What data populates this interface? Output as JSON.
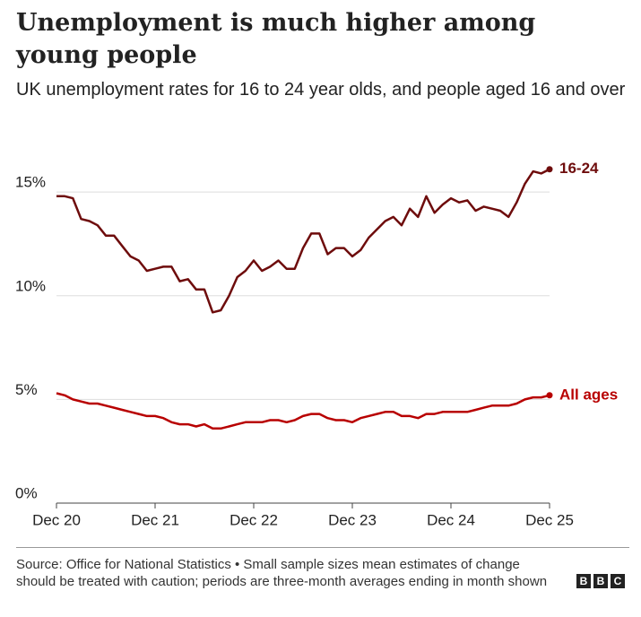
{
  "header": {
    "title": "Unemployment is much higher among young people",
    "subtitle": "UK unemployment rates for 16 to 24 year olds, and people aged 16 and over"
  },
  "chart_data": {
    "type": "line",
    "categories": [
      "Dec 20",
      null,
      null,
      null,
      null,
      null,
      null,
      null,
      null,
      null,
      null,
      null,
      "Dec 21",
      null,
      null,
      null,
      null,
      null,
      null,
      null,
      null,
      null,
      null,
      null,
      "Dec 22",
      null,
      null,
      null,
      null,
      null,
      null,
      null,
      null,
      null,
      null,
      null,
      "Dec 23",
      null,
      null,
      null,
      null,
      null,
      null,
      null,
      null,
      null,
      null,
      null,
      "Dec 24",
      null,
      null,
      null,
      null,
      null,
      null,
      null,
      null,
      null,
      null,
      null,
      "Dec 25"
    ],
    "series": [
      {
        "name": "16-24",
        "color": "#6e0c0c",
        "values": [
          14.8,
          14.8,
          14.7,
          13.7,
          13.6,
          13.4,
          12.9,
          12.9,
          12.4,
          11.9,
          11.7,
          11.2,
          11.3,
          11.4,
          11.4,
          10.7,
          10.8,
          10.3,
          10.3,
          9.2,
          9.3,
          10.0,
          10.9,
          11.2,
          11.7,
          11.2,
          11.4,
          11.7,
          11.3,
          11.3,
          12.3,
          13.0,
          13.0,
          12.0,
          12.3,
          12.3,
          11.9,
          12.2,
          12.8,
          13.2,
          13.6,
          13.8,
          13.4,
          14.2,
          13.8,
          14.8,
          14.0,
          14.4,
          14.7,
          14.5,
          14.6,
          14.1,
          14.3,
          14.2,
          14.1,
          13.8,
          14.5,
          15.4,
          16.0,
          15.9,
          16.1
        ]
      },
      {
        "name": "All ages",
        "color": "#b80000",
        "values": [
          5.3,
          5.2,
          5.0,
          4.9,
          4.8,
          4.8,
          4.7,
          4.6,
          4.5,
          4.4,
          4.3,
          4.2,
          4.2,
          4.1,
          3.9,
          3.8,
          3.8,
          3.7,
          3.8,
          3.6,
          3.6,
          3.7,
          3.8,
          3.9,
          3.9,
          3.9,
          4.0,
          4.0,
          3.9,
          4.0,
          4.2,
          4.3,
          4.3,
          4.1,
          4.0,
          4.0,
          3.9,
          4.1,
          4.2,
          4.3,
          4.4,
          4.4,
          4.2,
          4.2,
          4.1,
          4.3,
          4.3,
          4.4,
          4.4,
          4.4,
          4.4,
          4.5,
          4.6,
          4.7,
          4.7,
          4.7,
          4.8,
          5.0,
          5.1,
          5.1,
          5.2
        ]
      }
    ],
    "ylim": [
      0,
      17.3
    ],
    "yticks": [
      {
        "value": 0,
        "label": "0%"
      },
      {
        "value": 5,
        "label": "5%"
      },
      {
        "value": 10,
        "label": "10%"
      },
      {
        "value": 15,
        "label": "15%"
      }
    ],
    "grid": true
  },
  "footer": {
    "source": "Source: Office for National Statistics • Small sample sizes mean estimates of change should be treated with caution; periods are three-month averages ending in month shown",
    "logo": "BBC"
  }
}
